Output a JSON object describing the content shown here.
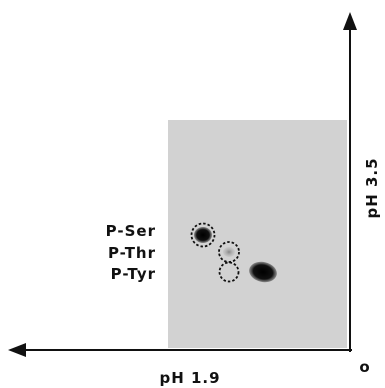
{
  "spot_labels": [
    "P-Ser",
    "P-Thr",
    "P-Tyr"
  ],
  "axes": {
    "horizontal": "pH 1.9",
    "vertical": "pH 3.5",
    "origin": "o"
  }
}
